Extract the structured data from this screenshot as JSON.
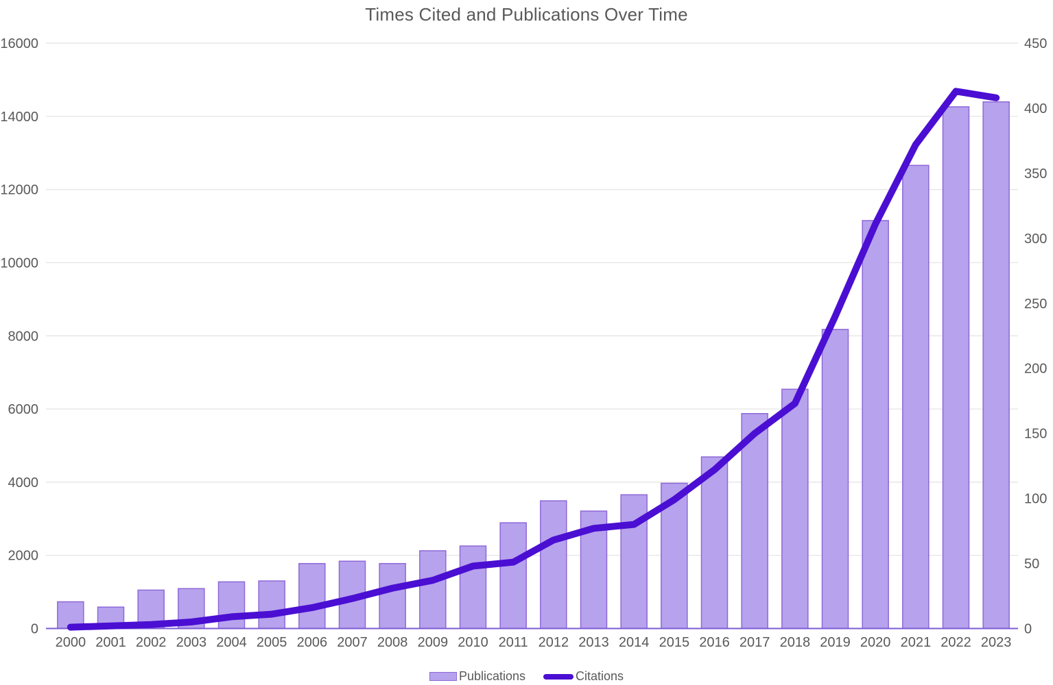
{
  "chart_data": {
    "type": "bar",
    "subtype": "combo-bar-line-dual-axis",
    "title": "Times Cited and Publications Over Time",
    "xlabel": "",
    "ylabel_left": "",
    "ylabel_right": "",
    "grid": true,
    "legend_position": "bottom-center",
    "categories": [
      "2000",
      "2001",
      "2002",
      "2003",
      "2004",
      "2005",
      "2006",
      "2007",
      "2008",
      "2009",
      "2010",
      "2011",
      "2012",
      "2013",
      "2014",
      "2015",
      "2016",
      "2017",
      "2018",
      "2019",
      "2020",
      "2021",
      "2022",
      "2023"
    ],
    "series": [
      {
        "name": "Publications",
        "type": "bar",
        "axis": "left",
        "values": [
          730,
          585,
          1050,
          1090,
          1275,
          1300,
          1775,
          1840,
          1775,
          2125,
          2255,
          2890,
          3490,
          3210,
          3655,
          3970,
          4690,
          5875,
          6540,
          8175,
          11150,
          12660,
          14260,
          14395
        ]
      },
      {
        "name": "Citations",
        "type": "line",
        "axis": "right",
        "values": [
          1,
          2,
          3,
          5,
          9,
          11,
          16,
          23,
          31,
          37,
          48,
          51,
          68,
          77,
          80,
          99,
          122,
          150,
          173,
          240,
          311,
          372,
          413,
          408
        ]
      }
    ],
    "left_axis": {
      "min": 0,
      "max": 16000,
      "step": 2000,
      "tick_labels": [
        "0",
        "2000",
        "4000",
        "6000",
        "8000",
        "10000",
        "12000",
        "14000",
        "16000"
      ]
    },
    "right_axis": {
      "min": 0,
      "max": 450,
      "step": 50,
      "tick_labels": [
        "0",
        "50",
        "100",
        "150",
        "200",
        "250",
        "300",
        "350",
        "400",
        "450"
      ]
    },
    "colors": {
      "bar_fill": "#b7a2ed",
      "bar_stroke": "#8d68d8",
      "line": "#4a0fd2",
      "axis_line": "#7d5bd5",
      "gridline": "#e7e7e7",
      "text": "#595959",
      "background": "#ffffff"
    }
  }
}
